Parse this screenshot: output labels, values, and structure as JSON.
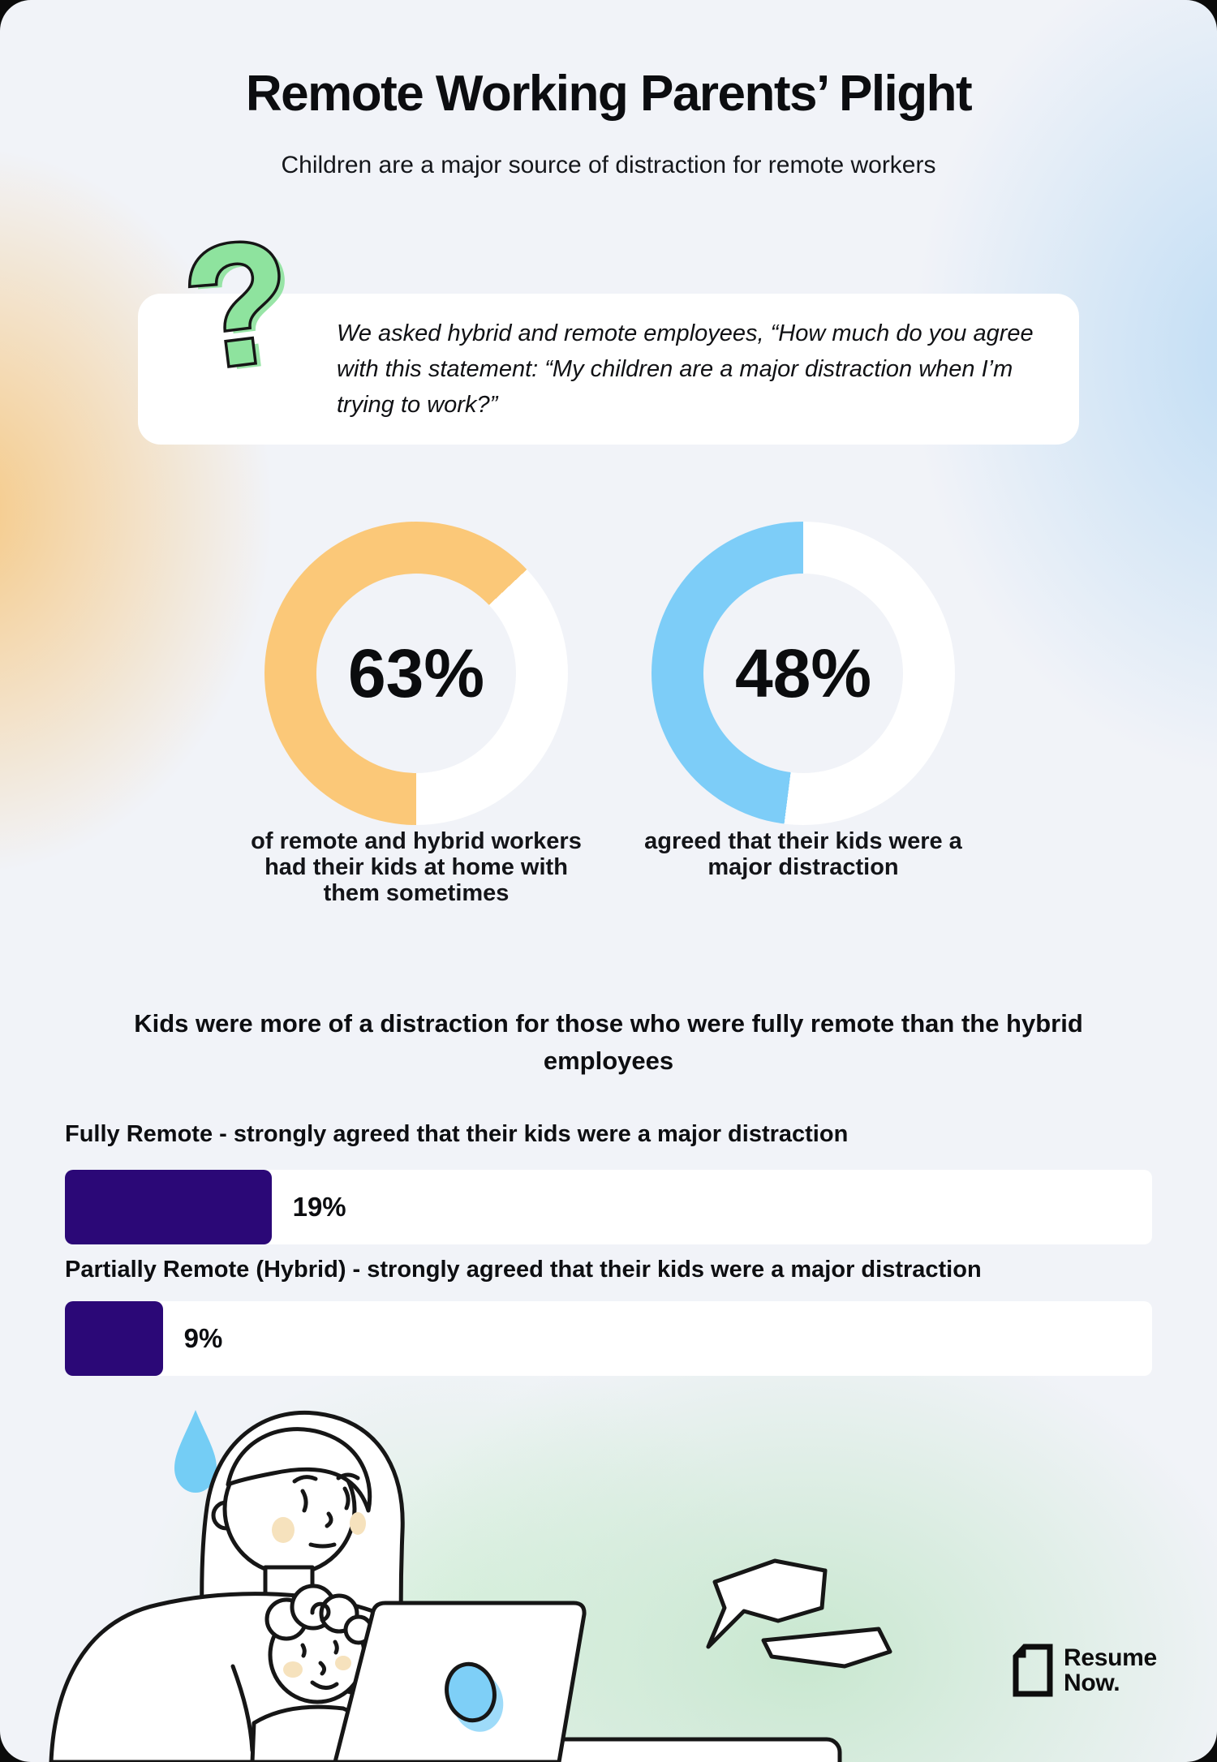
{
  "header": {
    "title": "Remote Working Parents’ Plight",
    "subtitle": "Children are a major source of distraction for remote workers"
  },
  "question_box": {
    "text": "We asked hybrid and remote employees, “How much do you agree with this statement: “My children are a major distraction when I’m trying to work?”"
  },
  "section_heading": "Kids were more of a distraction for those who were fully remote than the hybrid employees",
  "icons": {
    "question_mark": "?"
  },
  "colors": {
    "donut_rest": "#ffffff",
    "background": "#F1F3F8",
    "accent_orange": "#FBC878",
    "accent_blue": "#7DCDF8",
    "accent_green": "#8EE39E",
    "bar_purple": "#2B0877"
  },
  "chart_data": [
    {
      "type": "pie",
      "variant": "donut",
      "value": 63,
      "display": "63%",
      "color": "#FBC878",
      "start_angle": 180,
      "label": "of remote and hybrid workers had their kids at home with them sometimes"
    },
    {
      "type": "pie",
      "variant": "donut",
      "value": 48,
      "display": "48%",
      "color": "#7DCDF8",
      "start_angle": 187.2,
      "label": "agreed that their kids were a major distraction"
    },
    {
      "type": "bar",
      "orientation": "horizontal",
      "xlim": [
        0,
        100
      ],
      "bar_color": "#2B0877",
      "track_color": "#ffffff",
      "bars": [
        {
          "label": "Fully Remote - strongly agreed that their kids were a major distraction",
          "value": 19,
          "display": "19%"
        },
        {
          "label": "Partially Remote (Hybrid) - strongly agreed that their kids were a major distraction",
          "value": 9,
          "display": "9%"
        }
      ]
    }
  ],
  "footer": {
    "brand_line1": "Resume",
    "brand_line2": "Now."
  }
}
